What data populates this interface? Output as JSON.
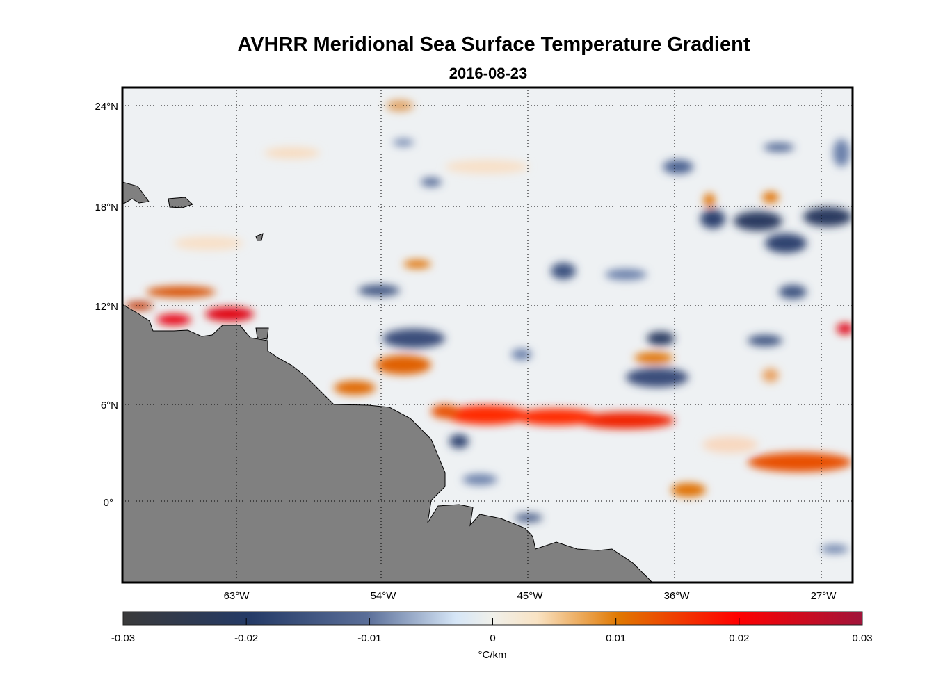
{
  "title": "AVHRR Meridional Sea Surface Temperature Gradient",
  "subtitle": "2016-08-23",
  "map": {
    "lon_ticks": [
      "63°W",
      "54°W",
      "45°W",
      "36°W",
      "27°W"
    ],
    "lat_ticks": [
      "24°N",
      "18°N",
      "12°N",
      "6°N",
      "0°"
    ],
    "land_color": "#808080",
    "grid": "dotted"
  },
  "colorbar": {
    "ticks": [
      "-0.03",
      "-0.02",
      "-0.01",
      "0",
      "0.01",
      "0.02",
      "0.03"
    ],
    "range": [
      -0.03,
      0.03
    ],
    "label": "°C/km",
    "colors": [
      "#3a3a3a",
      "#243a66",
      "#5a6e98",
      "#d6e6f7",
      "#f0f0ea",
      "#f9e3c4",
      "#e07800",
      "#ff0000",
      "#a0143a"
    ]
  }
}
